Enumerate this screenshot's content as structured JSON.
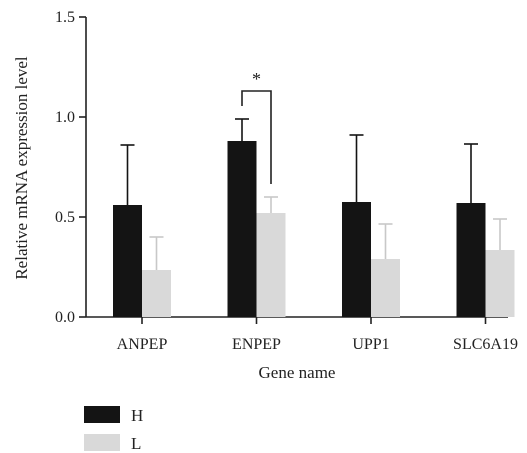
{
  "chart_data": {
    "type": "bar",
    "title": "",
    "xlabel": "Gene name",
    "ylabel": "Relative mRNA expression level",
    "ylim": [
      0,
      1.5
    ],
    "yticks": [
      0.0,
      0.5,
      1.0,
      1.5
    ],
    "ytick_labels": [
      "0.0",
      "0.5",
      "1.0",
      "1.5"
    ],
    "categories": [
      "ANPEP",
      "ENPEP",
      "UPP1",
      "SLC6A19"
    ],
    "series": [
      {
        "name": "H",
        "color": "#141414",
        "values": [
          0.56,
          0.88,
          0.575,
          0.57
        ],
        "errors": [
          0.3,
          0.11,
          0.335,
          0.295
        ]
      },
      {
        "name": "L",
        "color": "#d9d9d9",
        "values": [
          0.235,
          0.52,
          0.29,
          0.335
        ],
        "errors": [
          0.165,
          0.08,
          0.175,
          0.155
        ]
      }
    ],
    "legend_position": "bottom-left",
    "annotations": [
      {
        "type": "significance",
        "category": "ENPEP",
        "label": "*"
      }
    ],
    "grid": false
  }
}
